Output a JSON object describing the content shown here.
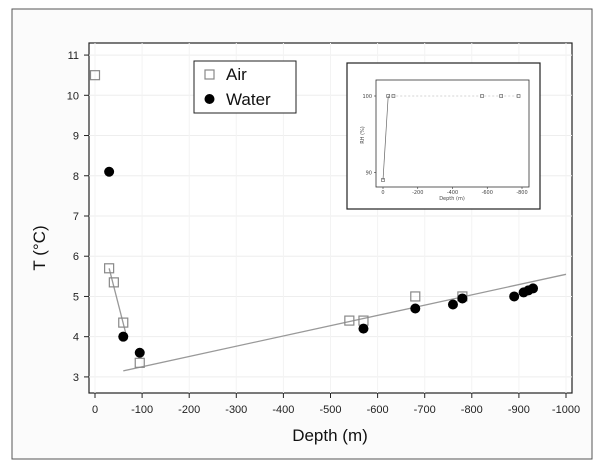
{
  "chart_data": {
    "type": "scatter",
    "title": "",
    "xlabel": "Depth (m)",
    "ylabel": "T (°C)",
    "xlim": [
      0,
      -1000
    ],
    "ylim": [
      2.6,
      11.3
    ],
    "x_ticks": [
      "0",
      "-100",
      "-200",
      "-300",
      "-400",
      "-500",
      "-600",
      "-700",
      "-800",
      "-900",
      "-1000"
    ],
    "y_ticks": [
      "3",
      "4",
      "5",
      "6",
      "7",
      "8",
      "9",
      "10",
      "11"
    ],
    "legend_position": "top-left",
    "series": [
      {
        "name": "Air",
        "marker": "open-square",
        "color": "#888888",
        "points": [
          {
            "x": 0,
            "y": 10.5
          },
          {
            "x": -30,
            "y": 5.7
          },
          {
            "x": -40,
            "y": 5.35
          },
          {
            "x": -60,
            "y": 4.35
          },
          {
            "x": -95,
            "y": 3.35
          },
          {
            "x": -540,
            "y": 4.4
          },
          {
            "x": -570,
            "y": 4.4
          },
          {
            "x": -680,
            "y": 5.0
          },
          {
            "x": -780,
            "y": 5.0
          }
        ]
      },
      {
        "name": "Water",
        "marker": "filled-circle",
        "color": "#000000",
        "points": [
          {
            "x": -30,
            "y": 8.1
          },
          {
            "x": -60,
            "y": 4.0
          },
          {
            "x": -95,
            "y": 3.6
          },
          {
            "x": -570,
            "y": 4.2
          },
          {
            "x": -680,
            "y": 4.7
          },
          {
            "x": -760,
            "y": 4.8
          },
          {
            "x": -780,
            "y": 4.95
          },
          {
            "x": -890,
            "y": 5.0
          },
          {
            "x": -910,
            "y": 5.1
          },
          {
            "x": -920,
            "y": 5.15
          },
          {
            "x": -930,
            "y": 5.2
          }
        ]
      }
    ],
    "trend_lines": [
      {
        "x": [
          -30,
          -65
        ],
        "y": [
          5.7,
          4.1
        ]
      },
      {
        "x": [
          -60,
          -1000
        ],
        "y": [
          3.15,
          5.55
        ]
      }
    ],
    "inset": {
      "xlabel": "Depth (m)",
      "ylabel": "RH (%)",
      "x_ticks": [
        "0",
        "-200",
        "-400",
        "-600",
        "-800"
      ],
      "y_ticks": [
        "100",
        "90"
      ],
      "points": [
        {
          "x": 0,
          "y": 89
        },
        {
          "x": -30,
          "y": 100
        },
        {
          "x": -60,
          "y": 100
        },
        {
          "x": -570,
          "y": 100
        },
        {
          "x": -680,
          "y": 100
        },
        {
          "x": -780,
          "y": 100
        }
      ]
    }
  }
}
